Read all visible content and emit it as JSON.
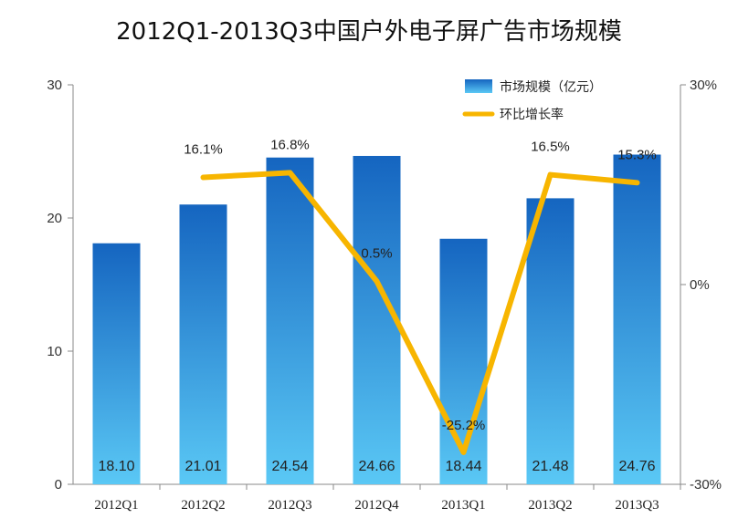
{
  "chart_data": {
    "type": "bar",
    "title": "2012Q1-2013Q3中国户外电子屏广告市场规模",
    "categories": [
      "2012Q1",
      "2012Q2",
      "2012Q3",
      "2012Q4",
      "2013Q1",
      "2013Q2",
      "2013Q3"
    ],
    "series": [
      {
        "name": "市场规模（亿元）",
        "type": "bar",
        "axis": "left",
        "values": [
          18.1,
          21.01,
          24.54,
          24.66,
          18.44,
          21.48,
          24.76
        ],
        "labels": [
          "18.10",
          "21.01",
          "24.54",
          "24.66",
          "18.44",
          "21.48",
          "24.76"
        ]
      },
      {
        "name": "环比增长率",
        "type": "line",
        "axis": "right",
        "values": [
          null,
          16.1,
          16.8,
          0.5,
          -25.2,
          16.5,
          15.3
        ],
        "labels": [
          "",
          "16.1%",
          "16.8%",
          "0.5%",
          "-25.2%",
          "16.5%",
          "15.3%"
        ]
      }
    ],
    "y_left": {
      "min": 0,
      "max": 30,
      "ticks": [
        "0",
        "10",
        "20",
        "30"
      ]
    },
    "y_right": {
      "min": -30,
      "max": 30,
      "ticks": [
        "-30%",
        "0%",
        "30%"
      ]
    },
    "legend": "top-right",
    "grid": false,
    "colors": {
      "bar_top": "#1565C0",
      "bar_bottom": "#5AC8F5",
      "line": "#F7B500"
    }
  }
}
